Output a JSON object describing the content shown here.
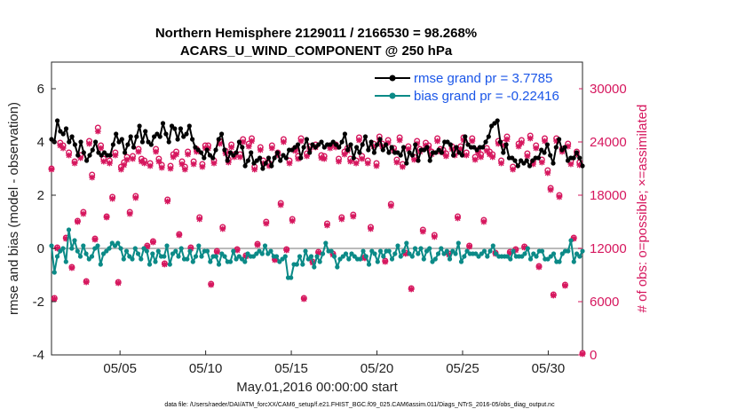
{
  "chart_data": {
    "type": "line",
    "title": "Northern Hemisphere 2129011 / 2166530 = 98.268%",
    "subtitle": "ACARS_U_WIND_COMPONENT @ 250 hPa",
    "xlabel": "May.01,2016 00:00:00 start",
    "ylabel": "rmse and bias (model - observation)",
    "y2label": "# of obs: o=possible; ×=assimilated",
    "footnote": "data file: /Users/raeder/DAI/ATM_forcXX/CAM6_setup/f.e21.FHIST_BGC.f09_025.CAM6assim.011/Diags_NTrS_2016-05/obs_diag_output.nc",
    "xlim": [
      1,
      32
    ],
    "ylim": [
      -4,
      7
    ],
    "y2lim": [
      0,
      33000
    ],
    "x_ticks": [
      5,
      10,
      15,
      20,
      25,
      30
    ],
    "x_tick_labels": [
      "05/05",
      "05/10",
      "05/15",
      "05/20",
      "05/25",
      "05/30"
    ],
    "y_ticks": [
      -4,
      -2,
      0,
      2,
      4,
      6
    ],
    "y_tick_labels": [
      "-4",
      "-2",
      "0",
      "2",
      "4",
      "6"
    ],
    "y2_ticks": [
      0,
      6000,
      12000,
      18000,
      24000,
      30000
    ],
    "y2_tick_labels": [
      "0",
      "6000",
      "12000",
      "18000",
      "24000",
      "30000"
    ],
    "legend": [
      "rmse grand pr = 3.7785",
      "bias grand pr = -0.22416"
    ],
    "legend_position": "top-right",
    "colors": {
      "rmse": "#000000",
      "bias": "#0b8a87",
      "obs": "#d6175e",
      "zero_line": "#bbbbbb"
    },
    "series": [
      {
        "name": "rmse",
        "values": [
          4.1,
          4.0,
          4.8,
          4.4,
          4.3,
          4.5,
          4.0,
          4.2,
          3.9,
          3.5,
          4.0,
          3.6,
          3.3,
          3.5,
          3.7,
          4.0,
          3.6,
          3.5,
          3.6,
          3.5,
          3.5,
          3.9,
          4.3,
          4.0,
          4.1,
          3.6,
          3.9,
          4.2,
          3.8,
          4.2,
          4.6,
          4.0,
          4.4,
          4.0,
          3.9,
          4.2,
          4.3,
          4.2,
          4.7,
          4.3,
          4.0,
          4.6,
          4.5,
          4.1,
          4.5,
          4.2,
          4.3,
          4.6,
          4.1,
          3.8,
          3.7,
          3.6,
          3.4,
          3.7,
          3.5,
          3.4,
          3.7,
          4.1,
          4.3,
          3.7,
          3.3,
          3.6,
          3.5,
          3.6,
          4.0,
          3.8,
          3.1,
          3.3,
          3.6,
          3.2,
          3.3,
          3.4,
          3.0,
          3.2,
          3.4,
          3.1,
          3.4,
          3.6,
          3.3,
          3.5,
          3.4,
          3.7,
          3.7,
          3.8,
          3.9,
          3.4,
          3.8,
          4.1,
          3.6,
          3.9,
          3.8,
          3.9,
          4.0,
          3.8,
          3.9,
          3.9,
          4.0,
          3.9,
          3.8,
          4.0,
          4.3,
          3.7,
          3.9,
          3.4,
          3.8,
          3.6,
          3.9,
          4.2,
          3.7,
          4.0,
          3.6,
          3.9,
          4.1,
          3.7,
          3.9,
          3.6,
          3.8,
          3.6,
          3.6,
          3.5,
          3.8,
          3.2,
          3.6,
          3.5,
          3.9,
          3.3,
          3.7,
          3.7,
          3.8,
          3.3,
          3.6,
          3.6,
          3.7,
          3.6,
          4.0,
          4.0,
          3.9,
          3.5,
          3.8,
          3.6,
          3.5,
          4.2,
          3.9,
          3.8,
          3.8,
          3.7,
          3.8,
          3.8,
          4.0,
          4.2,
          4.6,
          4.7,
          4.8,
          4.0,
          3.6,
          3.9,
          3.4,
          3.4,
          3.3,
          3.1,
          3.3,
          3.2,
          3.3,
          3.1,
          3.3,
          3.4,
          3.4,
          3.7,
          3.6,
          3.9,
          3.5,
          3.2,
          3.8,
          4.1,
          3.7,
          3.8,
          3.3,
          3.4,
          3.4,
          3.6,
          3.4,
          3.1
        ]
      },
      {
        "name": "bias",
        "values": [
          0.1,
          -0.9,
          -0.3,
          -0.1,
          0.0,
          -0.5,
          0.7,
          0.0,
          0.3,
          -0.1,
          -0.3,
          0.1,
          -0.2,
          -0.4,
          -0.3,
          0.0,
          0.1,
          -0.6,
          -0.2,
          -0.1,
          0.0,
          0.2,
          0.1,
          0.2,
          0.0,
          -0.4,
          -0.1,
          -0.3,
          -0.4,
          0.0,
          -0.2,
          -0.4,
          0.0,
          -0.1,
          -0.6,
          -0.2,
          -0.5,
          -0.1,
          -0.3,
          -0.3,
          0.1,
          -0.6,
          -0.2,
          -0.1,
          -0.3,
          0.0,
          -0.4,
          -0.4,
          -0.1,
          -0.5,
          -0.3,
          0.1,
          -0.3,
          -0.1,
          -0.1,
          -0.5,
          -0.3,
          -0.3,
          -0.6,
          -0.2,
          -0.3,
          -0.5,
          -0.5,
          -0.1,
          -0.4,
          -0.3,
          -0.4,
          -0.5,
          -0.2,
          -0.3,
          -0.3,
          -0.2,
          -0.1,
          -0.2,
          0.1,
          -0.2,
          -0.1,
          -0.3,
          -0.3,
          -0.5,
          -0.4,
          -0.3,
          -1.1,
          -1.1,
          -0.6,
          -0.6,
          -0.3,
          -0.6,
          -0.1,
          -0.4,
          -0.3,
          -0.7,
          -0.3,
          -0.5,
          -0.2,
          0.2,
          -0.1,
          -0.1,
          -0.3,
          -0.7,
          -0.4,
          -0.3,
          -0.2,
          -0.4,
          -0.2,
          -0.3,
          -0.4,
          -0.4,
          -0.1,
          -0.3,
          -0.6,
          -0.1,
          -0.2,
          -0.5,
          -0.1,
          -0.3,
          -0.1,
          -0.1,
          -0.4,
          -0.2,
          0.1,
          -0.3,
          -0.1,
          0.2,
          -0.2,
          -0.3,
          0.0,
          -0.2,
          0.0,
          -0.4,
          -0.1,
          0.0,
          -0.5,
          -0.4,
          -0.2,
          0.0,
          -0.2,
          -0.1,
          -0.4,
          -0.1,
          -0.2,
          0.2,
          -0.5,
          -0.3,
          -0.1,
          -0.2,
          -0.2,
          -0.2,
          -0.3,
          -0.2,
          -0.1,
          -0.3,
          -0.1,
          0.1,
          -0.2,
          -0.3,
          -0.3,
          -0.3,
          -0.3,
          -0.4,
          -0.1,
          -0.3,
          -0.3,
          -0.3,
          -0.2,
          0.0,
          -0.4,
          -0.2,
          -0.3,
          -0.1,
          -0.1,
          -0.4,
          -0.4,
          -0.3,
          -0.2,
          -0.5,
          -0.5,
          -0.2,
          -0.1,
          -0.1,
          0.3,
          -0.5,
          -0.2,
          -0.3,
          -0.1
        ]
      },
      {
        "name": "obs_possible",
        "values": [
          21000,
          6400,
          12100,
          23900,
          23600,
          13200,
          22800,
          9900,
          21800,
          15100,
          22500,
          16100,
          8300,
          24100,
          20300,
          13100,
          25600,
          23600,
          22100,
          15600,
          21900,
          17800,
          22800,
          8200,
          21200,
          21700,
          22300,
          16100,
          22400,
          17900,
          23200,
          22100,
          21900,
          12300,
          21600,
          12800,
          23200,
          22100,
          21400,
          10300,
          17500,
          21300,
          22600,
          22900,
          13600,
          21800,
          21200,
          22900,
          12100,
          21800,
          23200,
          15500,
          21500,
          23600,
          23600,
          8000,
          21900,
          11700,
          24100,
          14400,
          23000,
          22000,
          23700,
          22600,
          11900,
          22600,
          24300,
          11200,
          23800,
          24400,
          21200,
          12500,
          23400,
          21900,
          15000,
          21600,
          23600,
          10800,
          22800,
          17100,
          24300,
          11900,
          21900,
          15300,
          23300,
          22400,
          24400,
          6400,
          22700,
          23500,
          10500,
          23700,
          11600,
          22500,
          22400,
          14800,
          23600,
          11400,
          23700,
          22100,
          15500,
          22900,
          23300,
          22100,
          15800,
          21900,
          24500,
          22400,
          11000,
          21900,
          14400,
          23800,
          21600,
          24600,
          23800,
          10600,
          24200,
          17000,
          23300,
          22000,
          24500,
          21500,
          11500,
          23500,
          7500,
          22300,
          24100,
          23200,
          14100,
          23900,
          23600,
          22900,
          13500,
          24400,
          23200,
          23100,
          22700,
          11400,
          23500,
          22800,
          15600,
          23500,
          24500,
          22800,
          12300,
          24400,
          22300,
          23100,
          22600,
          15200,
          23300,
          22900,
          22600,
          11500,
          24100,
          21900,
          23900,
          24600,
          11600,
          21200,
          11900,
          23800,
          24200,
          12200,
          22700,
          24700,
          21800,
          23600,
          10000,
          22000,
          24400,
          20800,
          18800,
          6800,
          24400,
          18000,
          23200,
          7900,
          23800,
          21800,
          13200,
          22900,
          21700,
          200
        ]
      },
      {
        "name": "obs_assimilated",
        "values": [
          20900,
          6300,
          12000,
          23600,
          23300,
          13100,
          22500,
          9800,
          21600,
          15000,
          22200,
          15900,
          8200,
          23800,
          20000,
          13000,
          25200,
          23300,
          21800,
          15500,
          21600,
          17600,
          22500,
          8100,
          20900,
          21400,
          22000,
          15900,
          22100,
          17700,
          22900,
          21800,
          21600,
          12200,
          21300,
          12700,
          22900,
          21800,
          21100,
          10200,
          17300,
          21000,
          22300,
          22600,
          13500,
          21500,
          20900,
          22600,
          12000,
          21500,
          22900,
          15300,
          21200,
          23300,
          23300,
          7900,
          21600,
          11600,
          23800,
          14200,
          22700,
          21700,
          23400,
          22300,
          11800,
          22300,
          24000,
          11100,
          23500,
          24100,
          20900,
          12400,
          23100,
          21600,
          14800,
          21300,
          23300,
          10700,
          22500,
          16900,
          24000,
          11800,
          21600,
          15100,
          23000,
          22100,
          24100,
          6300,
          22400,
          23200,
          10400,
          23400,
          11500,
          22200,
          22100,
          14600,
          23300,
          11300,
          23400,
          21800,
          15300,
          22600,
          23000,
          21800,
          15600,
          21600,
          24200,
          22100,
          10900,
          21600,
          14200,
          23500,
          21300,
          24300,
          23500,
          10500,
          23900,
          16800,
          23000,
          21700,
          24200,
          21200,
          11400,
          23200,
          7400,
          22000,
          23800,
          22900,
          13900,
          23600,
          23300,
          22600,
          13300,
          24100,
          22900,
          22800,
          22400,
          11300,
          23200,
          22500,
          15400,
          23200,
          24200,
          22500,
          12200,
          24100,
          22000,
          22800,
          22300,
          15000,
          23000,
          22600,
          22300,
          11400,
          23800,
          21600,
          23600,
          24300,
          11500,
          20900,
          11800,
          23500,
          23900,
          12100,
          22400,
          24400,
          21500,
          23300,
          9900,
          21700,
          24100,
          20500,
          18600,
          6700,
          24100,
          17800,
          22900,
          7800,
          23500,
          21500,
          13100,
          22600,
          21400,
          100
        ]
      }
    ]
  }
}
